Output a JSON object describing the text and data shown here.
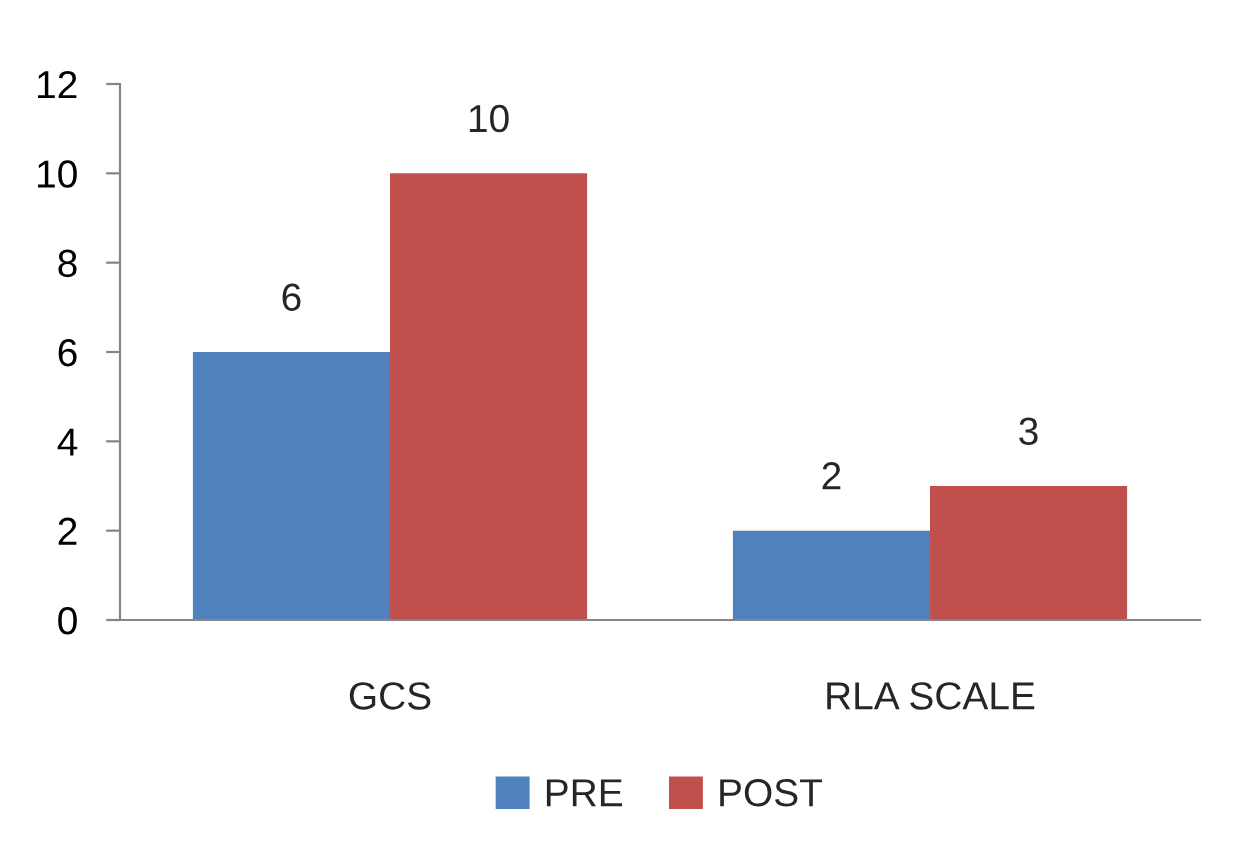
{
  "chart_data": {
    "type": "bar",
    "categories": [
      "GCS",
      "RLA SCALE"
    ],
    "series": [
      {
        "name": "PRE",
        "color": "#4f81bd",
        "values": [
          6,
          2
        ]
      },
      {
        "name": "POST",
        "color": "#c0504d",
        "values": [
          10,
          3
        ]
      }
    ],
    "ylim": [
      0,
      12
    ],
    "yticks": [
      0,
      2,
      4,
      6,
      8,
      10,
      12
    ],
    "grid": false,
    "legend": "bottom",
    "data_labels": true
  }
}
